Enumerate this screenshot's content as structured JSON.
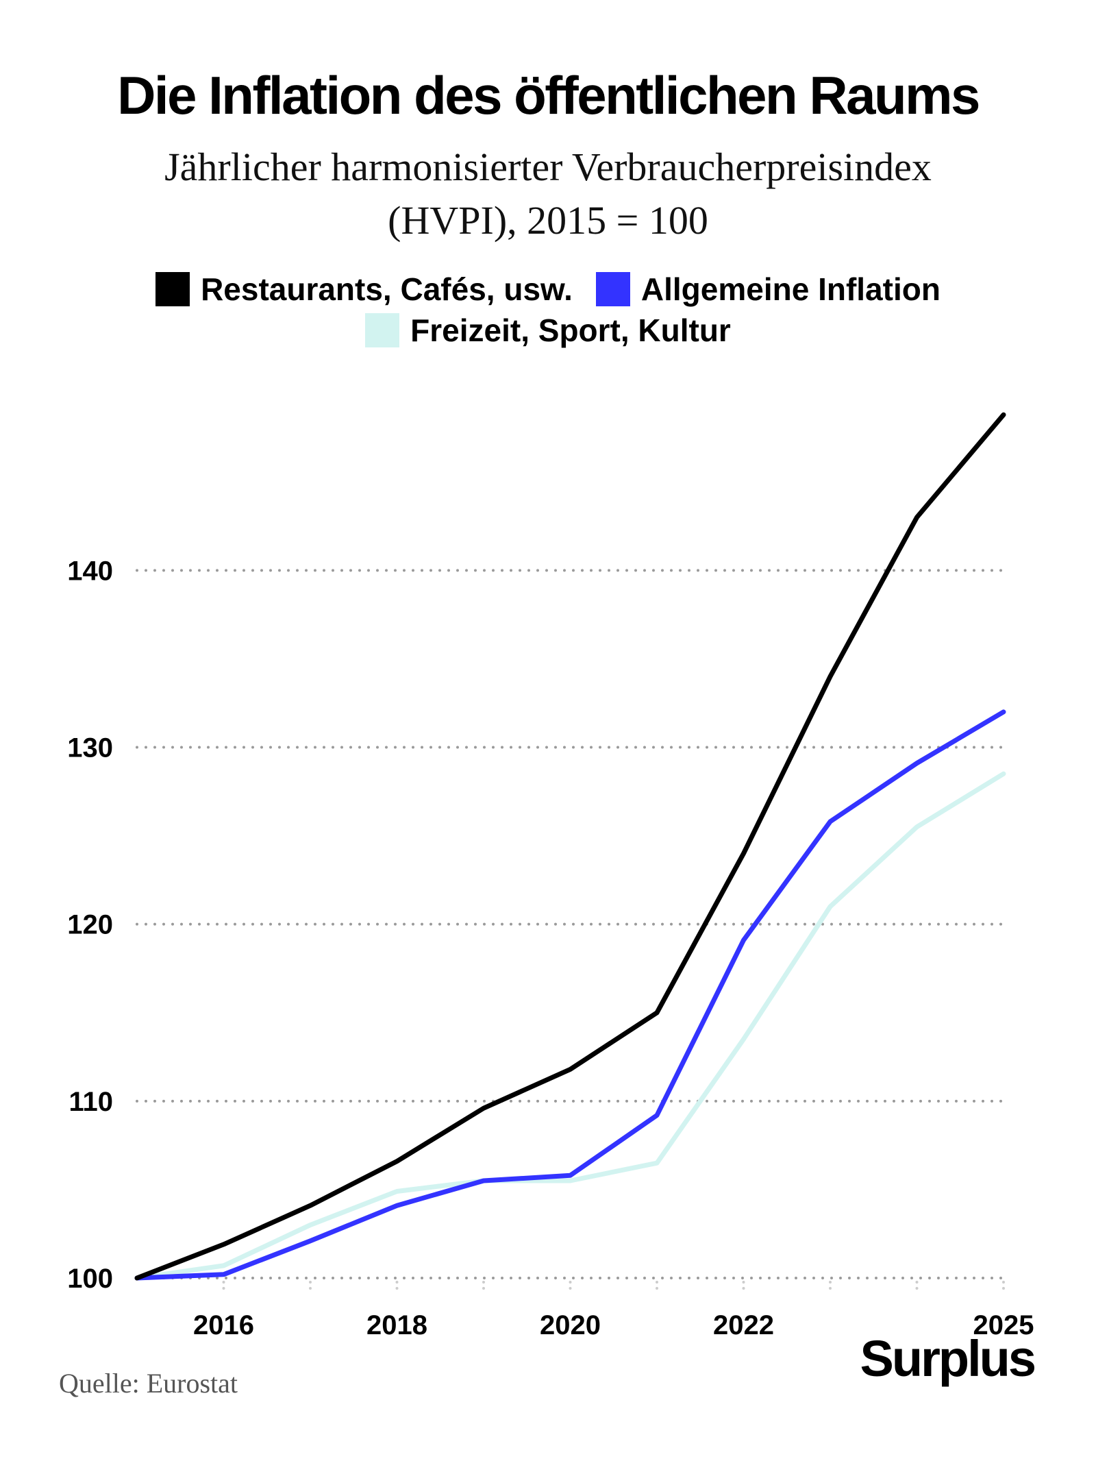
{
  "title": "Die Inflation des öffentlichen Raums",
  "subtitle_line1": "Jährlicher harmonisierter Verbraucherpreisindex",
  "subtitle_line2": "(HVPI), 2015 = 100",
  "source": "Quelle: Eurostat",
  "brand": "Surplus",
  "chart_data": {
    "type": "line",
    "x": [
      2015,
      2016,
      2017,
      2018,
      2019,
      2020,
      2021,
      2022,
      2023,
      2024,
      2025
    ],
    "x_tick_labels": [
      "2016",
      "2018",
      "2020",
      "2022",
      "2025"
    ],
    "x_ticks": [
      2016,
      2018,
      2020,
      2022,
      2025
    ],
    "y_ticks": [
      100,
      110,
      120,
      130,
      140
    ],
    "y_tick_labels": [
      "100",
      "110",
      "120",
      "130",
      "140"
    ],
    "ylim": [
      100,
      149
    ],
    "grid": "horizontal dotted",
    "legend_placement": "top",
    "series": [
      {
        "name": "Restaurants, Cafés, usw.",
        "color": "#000000",
        "values": [
          100,
          101.9,
          104.1,
          106.6,
          109.6,
          111.8,
          115.0,
          124.0,
          134.0,
          143.0,
          148.8
        ]
      },
      {
        "name": "Allgemeine Inflation",
        "color": "#3333ff",
        "values": [
          100,
          100.2,
          102.1,
          104.1,
          105.5,
          105.8,
          109.2,
          119.1,
          125.8,
          129.1,
          132.0
        ]
      },
      {
        "name": "Freizeit, Sport, Kultur",
        "color": "#d2f3f0",
        "values": [
          100,
          100.7,
          103.0,
          104.9,
          105.5,
          105.5,
          106.5,
          113.5,
          121.0,
          125.5,
          128.5
        ]
      }
    ]
  }
}
